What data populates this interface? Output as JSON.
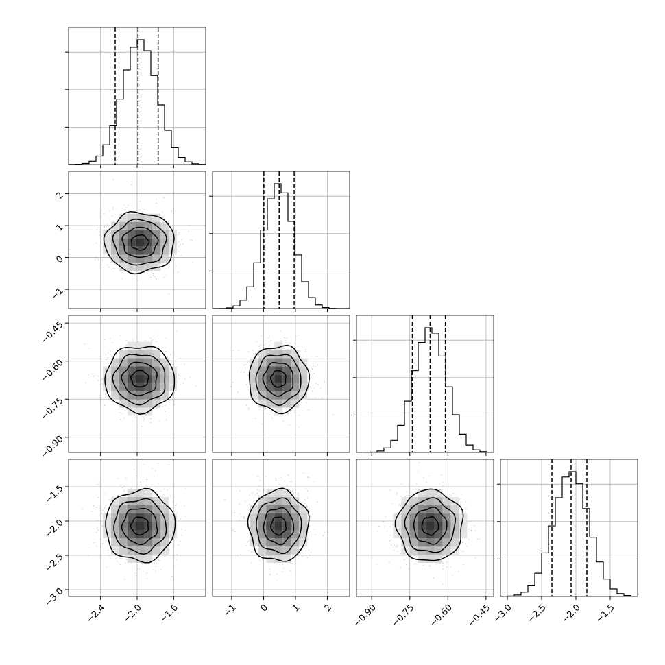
{
  "colors": {
    "ink": "#000000",
    "grid": "#b0b0b0",
    "scatter": "#9a9a9a",
    "panel_bg": "#ffffff"
  },
  "chart_data": {
    "type": "corner",
    "title": "",
    "parameters": [
      {
        "label": "",
        "range": [
          -2.75,
          -1.25
        ],
        "ticks": [
          -2.4,
          -2.0,
          -1.6
        ],
        "tick_labels": [
          "−2.4",
          "−2.0",
          "−1.6"
        ],
        "mean": -1.97,
        "sd": 0.19,
        "quantiles": [
          -2.24,
          -1.99,
          -1.77
        ]
      },
      {
        "label": "",
        "range": [
          -1.6,
          2.7
        ],
        "ticks": [
          -1,
          0,
          1,
          2
        ],
        "tick_labels": [
          "−1",
          "0",
          "1",
          "2"
        ],
        "mean": 0.47,
        "sd": 0.47,
        "quantiles": [
          0.01,
          0.49,
          0.96
        ]
      },
      {
        "label": "",
        "range": [
          -0.96,
          -0.42
        ],
        "ticks": [
          -0.9,
          -0.75,
          -0.6,
          -0.45
        ],
        "tick_labels": [
          "−0.90",
          "−0.75",
          "−0.60",
          "−0.45"
        ],
        "mean": -0.67,
        "sd": 0.065,
        "quantiles": [
          -0.74,
          -0.67,
          -0.61
        ]
      },
      {
        "label": "",
        "range": [
          -3.1,
          -1.1
        ],
        "ticks": [
          -3.0,
          -2.5,
          -2.0,
          -1.5
        ],
        "tick_labels": [
          "−3.0",
          "−2.5",
          "−2.0",
          "−1.5"
        ],
        "mean": -2.07,
        "sd": 0.26,
        "quantiles": [
          -2.35,
          -2.07,
          -1.84
        ]
      }
    ],
    "histogram_bins": 20,
    "quantile_levels": [
      0.16,
      0.5,
      0.84
    ],
    "contour_levels_sigma": [
      0.5,
      1.0,
      1.5,
      2.0
    ],
    "grid": true
  }
}
